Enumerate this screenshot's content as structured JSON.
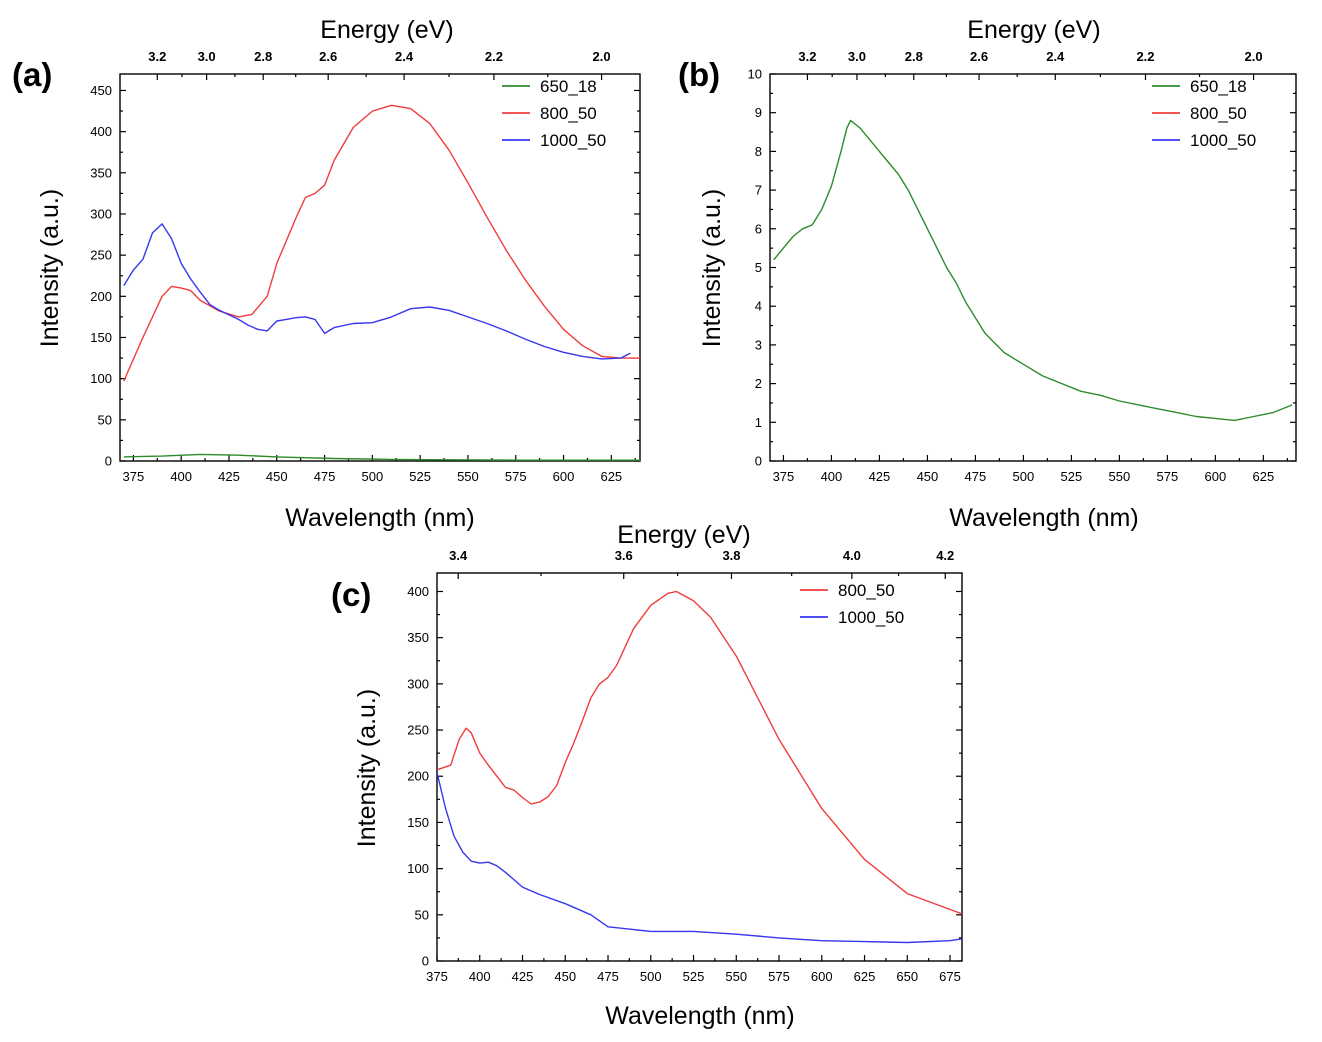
{
  "chart_data": [
    {
      "panel": "(a)",
      "type": "line",
      "xlabel": "Wavelength (nm)",
      "ylabel": "Intensity (a.u.)",
      "top_axis_label": "Energy (eV)",
      "xlim": [
        368,
        640
      ],
      "ylim": [
        0,
        470
      ],
      "x_ticks": [
        375,
        400,
        425,
        450,
        475,
        500,
        525,
        550,
        575,
        600,
        625
      ],
      "y_ticks": [
        0,
        50,
        100,
        150,
        200,
        250,
        300,
        350,
        400,
        450
      ],
      "top_ticks": [
        {
          "label": "3.2",
          "x": 387.5
        },
        {
          "label": "3.0",
          "x": 413.3
        },
        {
          "label": "2.8",
          "x": 442.9
        },
        {
          "label": "2.6",
          "x": 476.9
        },
        {
          "label": "2.4",
          "x": 516.6
        },
        {
          "label": "2.2",
          "x": 563.6
        },
        {
          "label": "2.0",
          "x": 619.9
        }
      ],
      "legend": [
        "650_18",
        "800_50",
        "1000_50"
      ],
      "series": [
        {
          "name": "650_18",
          "color": "#2e8b2e",
          "x": [
            370,
            390,
            410,
            430,
            450,
            480,
            510,
            540,
            580,
            620,
            640
          ],
          "y": [
            5,
            6,
            8,
            7,
            5,
            3,
            2,
            1.5,
            1,
            1,
            1
          ]
        },
        {
          "name": "800_50",
          "color": "#f03c3c",
          "x": [
            370,
            380,
            390,
            395,
            400,
            405,
            410,
            420,
            430,
            437,
            445,
            450,
            460,
            465,
            470,
            475,
            480,
            490,
            500,
            510,
            520,
            530,
            540,
            550,
            560,
            570,
            580,
            590,
            600,
            610,
            620,
            630,
            640
          ],
          "y": [
            97,
            150,
            200,
            212,
            210,
            207,
            195,
            182,
            175,
            178,
            200,
            240,
            295,
            320,
            325,
            335,
            365,
            405,
            425,
            432,
            428,
            410,
            378,
            338,
            296,
            256,
            220,
            188,
            160,
            140,
            127,
            125,
            125
          ]
        },
        {
          "name": "1000_50",
          "color": "#3737f0",
          "x": [
            370,
            375,
            380,
            385,
            390,
            395,
            400,
            405,
            410,
            415,
            420,
            430,
            435,
            440,
            445,
            450,
            455,
            460,
            465,
            470,
            475,
            480,
            490,
            500,
            510,
            520,
            530,
            540,
            550,
            560,
            570,
            580,
            590,
            600,
            610,
            620,
            630,
            635
          ],
          "y": [
            213,
            232,
            245,
            277,
            288,
            270,
            240,
            221,
            205,
            190,
            183,
            172,
            165,
            160,
            158,
            170,
            172,
            174,
            175,
            172,
            155,
            162,
            167,
            168,
            175,
            185,
            187,
            183,
            175,
            167,
            158,
            148,
            139,
            132,
            127,
            124,
            125,
            131
          ]
        }
      ]
    },
    {
      "panel": "(b)",
      "type": "line",
      "xlabel": "Wavelength (nm)",
      "ylabel": "Intensity (a.u.)",
      "top_axis_label": "Energy (eV)",
      "xlim": [
        368,
        642
      ],
      "ylim": [
        0,
        10
      ],
      "x_ticks": [
        375,
        400,
        425,
        450,
        475,
        500,
        525,
        550,
        575,
        600,
        625
      ],
      "y_ticks": [
        0,
        1,
        2,
        3,
        4,
        5,
        6,
        7,
        8,
        9,
        10
      ],
      "top_ticks": [
        {
          "label": "3.2",
          "x": 387.5
        },
        {
          "label": "3.0",
          "x": 413.3
        },
        {
          "label": "2.8",
          "x": 442.9
        },
        {
          "label": "2.6",
          "x": 476.9
        },
        {
          "label": "2.4",
          "x": 516.6
        },
        {
          "label": "2.2",
          "x": 563.6
        },
        {
          "label": "2.0",
          "x": 619.9
        }
      ],
      "legend": [
        "650_18",
        "800_50",
        "1000_50"
      ],
      "series": [
        {
          "name": "650_18",
          "color": "#2e8b2e",
          "x": [
            370,
            375,
            380,
            385,
            390,
            395,
            400,
            405,
            408,
            410,
            415,
            420,
            425,
            430,
            435,
            440,
            445,
            450,
            455,
            460,
            465,
            470,
            475,
            480,
            490,
            500,
            510,
            520,
            530,
            540,
            550,
            560,
            570,
            580,
            590,
            600,
            610,
            620,
            630,
            640
          ],
          "y": [
            5.2,
            5.5,
            5.8,
            6.0,
            6.1,
            6.5,
            7.1,
            8.0,
            8.6,
            8.8,
            8.6,
            8.3,
            8.0,
            7.7,
            7.4,
            7.0,
            6.5,
            6.0,
            5.5,
            5.0,
            4.6,
            4.1,
            3.7,
            3.3,
            2.8,
            2.5,
            2.2,
            2.0,
            1.8,
            1.7,
            1.55,
            1.45,
            1.35,
            1.25,
            1.15,
            1.1,
            1.05,
            1.15,
            1.25,
            1.45
          ]
        }
      ]
    },
    {
      "panel": "(c)",
      "type": "line",
      "xlabel": "Wavelength (nm)",
      "ylabel": "Intensity (a.u.)",
      "top_axis_label": "Energy (eV)",
      "xlim": [
        375,
        682
      ],
      "ylim": [
        0,
        420
      ],
      "x_ticks": [
        375,
        400,
        425,
        450,
        475,
        500,
        525,
        550,
        575,
        600,
        625,
        650,
        675
      ],
      "y_ticks": [
        0,
        50,
        100,
        150,
        200,
        250,
        300,
        350,
        400
      ],
      "top_ticks": [
        {
          "label": "3.4",
          "x": 387.4
        },
        {
          "label": "3.6",
          "x": 484.2
        },
        {
          "label": "3.8",
          "x": 547.2
        },
        {
          "label": "4.0",
          "x": 617.6
        },
        {
          "label": "4.2",
          "x": 672.2
        }
      ],
      "legend": [
        "800_50",
        "1000_50"
      ],
      "series": [
        {
          "name": "800_50",
          "color": "#f03c3c",
          "x": [
            375,
            383,
            388,
            392,
            395,
            400,
            405,
            410,
            415,
            420,
            425,
            430,
            435,
            440,
            445,
            450,
            455,
            460,
            465,
            470,
            475,
            480,
            490,
            500,
            510,
            515,
            525,
            535,
            550,
            575,
            600,
            625,
            650,
            682
          ],
          "y": [
            207,
            212,
            240,
            252,
            247,
            225,
            212,
            200,
            188,
            185,
            177,
            170,
            172,
            178,
            190,
            215,
            236,
            260,
            285,
            300,
            307,
            320,
            360,
            385,
            398,
            400,
            390,
            372,
            330,
            240,
            165,
            110,
            73,
            51
          ]
        },
        {
          "name": "1000_50",
          "color": "#3737f0",
          "x": [
            375,
            380,
            385,
            390,
            395,
            400,
            405,
            410,
            415,
            425,
            435,
            450,
            465,
            475,
            490,
            500,
            525,
            550,
            575,
            600,
            625,
            650,
            675,
            682
          ],
          "y": [
            204,
            165,
            135,
            118,
            108,
            106,
            107,
            103,
            96,
            80,
            72,
            62,
            50,
            37,
            34,
            32,
            32,
            29,
            25,
            22,
            21,
            20,
            22,
            24
          ]
        }
      ]
    }
  ]
}
